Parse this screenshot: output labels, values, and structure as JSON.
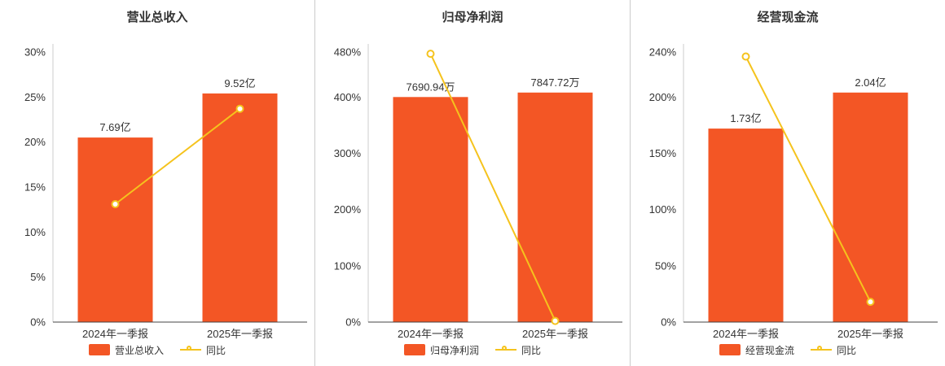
{
  "colors": {
    "bar": "#f35625",
    "line": "#f5c31d",
    "axis": "#444",
    "grid": "#ccc",
    "text": "#333"
  },
  "chart_data": [
    {
      "type": "bar",
      "title": "营业总收入",
      "categories": [
        "2024年一季报",
        "2025年一季报"
      ],
      "series": [
        {
          "name": "营业总收入",
          "type": "bar",
          "values_label": [
            "7.69亿",
            "9.52亿"
          ],
          "values_pct": [
            20.5,
            25.4
          ]
        },
        {
          "name": "同比",
          "type": "line",
          "values_pct": [
            13.1,
            23.7
          ]
        }
      ],
      "ylim": [
        0,
        30
      ],
      "yticks": [
        0,
        5,
        10,
        15,
        20,
        25,
        30
      ],
      "ytick_suffix": "%",
      "grid": false,
      "legend_position": "bottom"
    },
    {
      "type": "bar",
      "title": "归母净利润",
      "categories": [
        "2024年一季报",
        "2025年一季报"
      ],
      "series": [
        {
          "name": "归母净利润",
          "type": "bar",
          "values_label": [
            "7690.94万",
            "7847.72万"
          ],
          "values_pct": [
            400,
            408
          ]
        },
        {
          "name": "同比",
          "type": "line",
          "values_pct": [
            477,
            2
          ]
        }
      ],
      "ylim": [
        0,
        480
      ],
      "yticks": [
        0,
        100,
        200,
        300,
        400,
        480
      ],
      "ytick_suffix": "%",
      "grid": false,
      "legend_position": "bottom"
    },
    {
      "type": "bar",
      "title": "经营现金流",
      "categories": [
        "2024年一季报",
        "2025年一季报"
      ],
      "series": [
        {
          "name": "经营现金流",
          "type": "bar",
          "values_label": [
            "1.73亿",
            "2.04亿"
          ],
          "values_pct": [
            172,
            204
          ]
        },
        {
          "name": "同比",
          "type": "line",
          "values_pct": [
            236,
            18
          ]
        }
      ],
      "ylim": [
        0,
        240
      ],
      "yticks": [
        0,
        50,
        100,
        150,
        200,
        240
      ],
      "ytick_suffix": "%",
      "grid": false,
      "legend_position": "bottom"
    }
  ]
}
